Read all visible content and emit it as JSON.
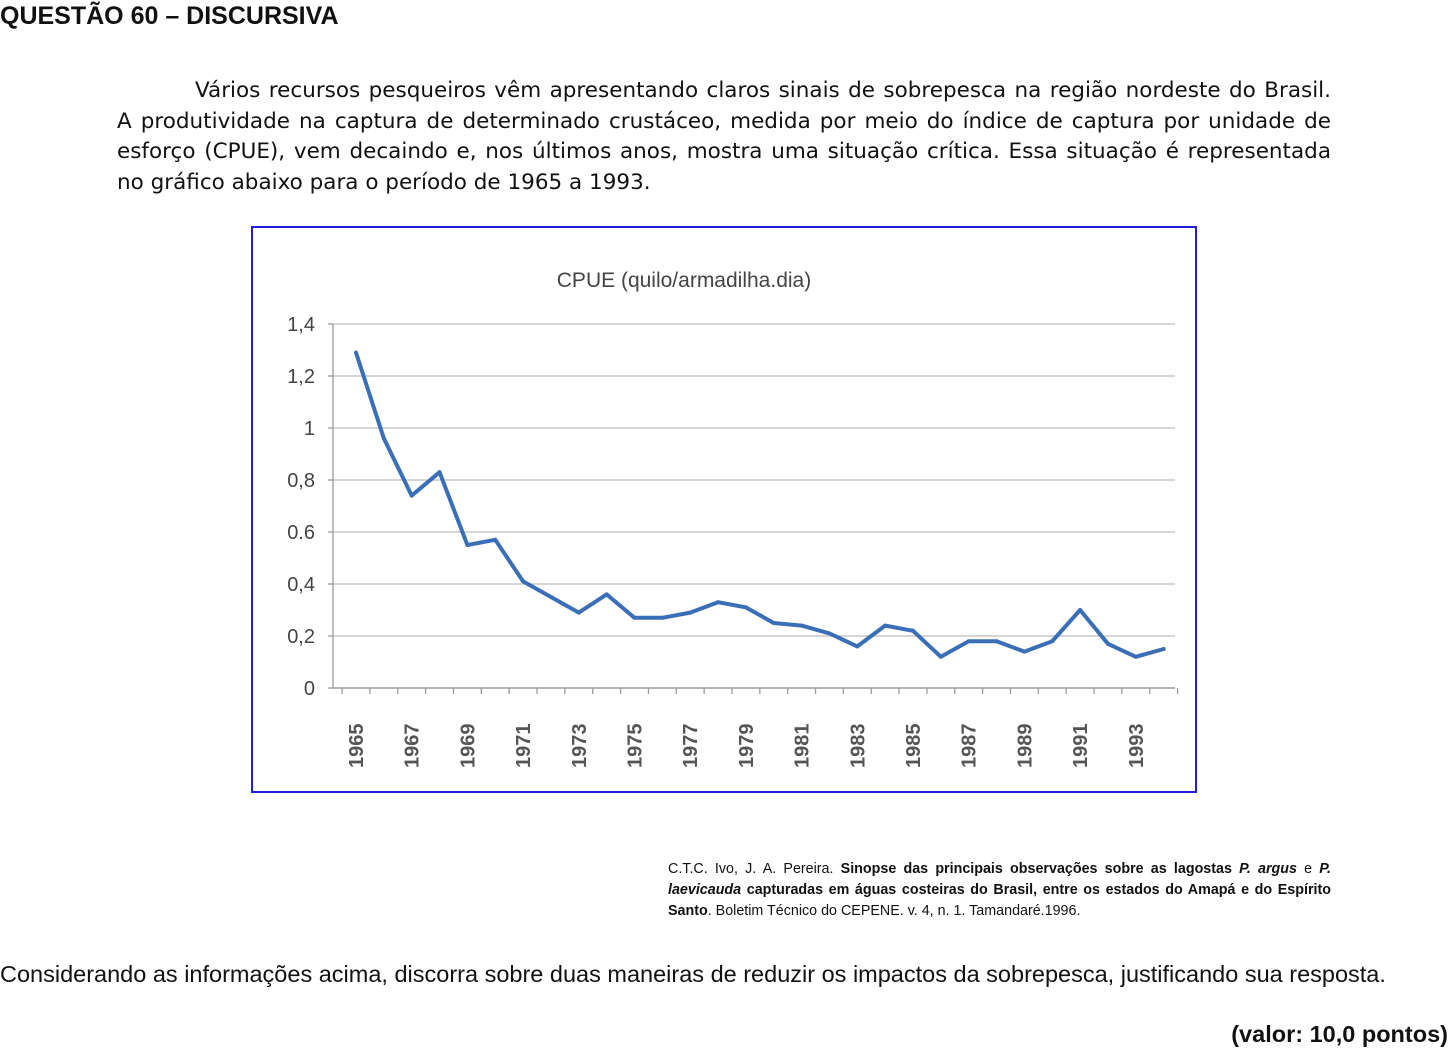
{
  "heading": "QUESTÃO 60 – DISCURSIVA",
  "intro": "Vários recursos pesqueiros vêm apresentando claros sinais de sobrepesca na região nordeste do Brasil. A produtividade na captura de determinado crustáceo, medida por meio do índice de captura por unidade de esforço (CPUE), vem decaindo e, nos últimos anos, mostra uma situação crítica. Essa situação é representada no gráfico abaixo para o período de 1965 a 1993.",
  "chart_data": {
    "type": "line",
    "title": "CPUE (quilo/armadilha.dia)",
    "xlabel": "",
    "ylabel": "",
    "ylim": [
      0,
      1.4
    ],
    "yticks": [
      "0",
      "0,2",
      "0,4",
      "0.6",
      "0,8",
      "1",
      "1,2",
      "1,4"
    ],
    "xticks": [
      "1965",
      "1967",
      "1969",
      "1971",
      "1973",
      "1975",
      "1977",
      "1979",
      "1981",
      "1983",
      "1985",
      "1987",
      "1989",
      "1991",
      "1993"
    ],
    "grid": true,
    "legend": "none",
    "line_color": "#3a6fb7",
    "x": [
      1965,
      1966,
      1967,
      1968,
      1969,
      1970,
      1971,
      1972,
      1973,
      1974,
      1975,
      1976,
      1977,
      1978,
      1979,
      1980,
      1981,
      1982,
      1983,
      1984,
      1985,
      1986,
      1987,
      1988,
      1989,
      1990,
      1991,
      1992,
      1993,
      1994
    ],
    "y": [
      1.29,
      0.96,
      0.74,
      0.83,
      0.55,
      0.57,
      0.41,
      0.35,
      0.29,
      0.36,
      0.27,
      0.27,
      0.29,
      0.33,
      0.31,
      0.25,
      0.24,
      0.21,
      0.16,
      0.24,
      0.22,
      0.12,
      0.18,
      0.18,
      0.14,
      0.18,
      0.3,
      0.17,
      0.12,
      0.15
    ]
  },
  "citation": {
    "authors": "C.T.C. Ivo, J. A. Pereira.",
    "title_a": "Sinopse das principais observações sobre as lagostas",
    "species1": "P. argus",
    "conj": "e",
    "species2": "P. laevicauda",
    "title_b": "capturadas em águas costeiras do Brasil, entre os estados do Amapá e do Espírito Santo",
    "rest": ". Boletim Técnico do CEPENE. v. 4, n. 1. Tamandaré.1996."
  },
  "question": "Considerando as informações acima, discorra sobre duas maneiras de reduzir os impactos da sobrepesca, justificando sua resposta.",
  "value_label": "(valor: 10,0 pontos)"
}
